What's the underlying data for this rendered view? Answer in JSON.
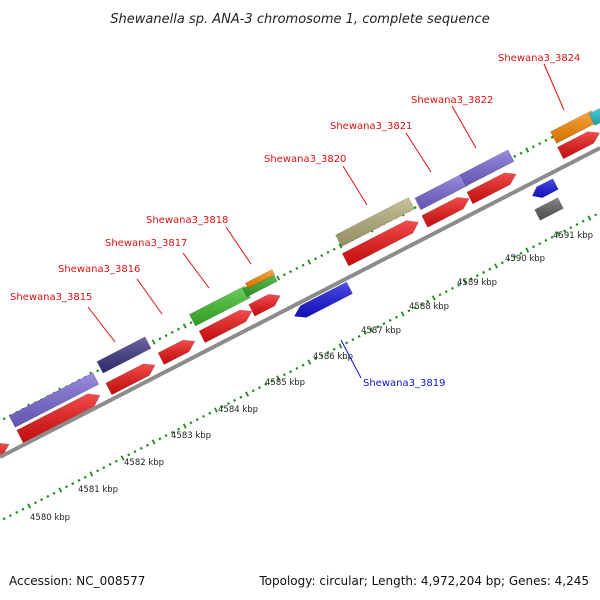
{
  "title": "Shewanella sp. ANA-3 chromosome 1, complete sequence",
  "footer": {
    "accession": "Accession: NC_008577",
    "topology": "Topology: circular; Length: 4,972,204 bp; Genes: 4,245"
  },
  "colors": {
    "label_forward": "#e01010",
    "label_reverse": "#1010d0",
    "backbone": "#8c8c8c",
    "ticks": "#1e8c1e"
  },
  "scale": {
    "labels": [
      "4580 kbp",
      "4581 kbp",
      "4582 kbp",
      "4583 kbp",
      "4584 kbp",
      "4585 kbp",
      "4586 kbp",
      "4587 kbp",
      "4588 kbp",
      "4589 kbp",
      "4590 kbp",
      "4591 kbp"
    ]
  },
  "gene_labels": [
    {
      "text": "Shewana3_3815",
      "strand": "forward"
    },
    {
      "text": "Shewana3_3816",
      "strand": "forward"
    },
    {
      "text": "Shewana3_3817",
      "strand": "forward"
    },
    {
      "text": "Shewana3_3818",
      "strand": "forward"
    },
    {
      "text": "Shewana3_3820",
      "strand": "forward"
    },
    {
      "text": "Shewana3_3821",
      "strand": "forward"
    },
    {
      "text": "Shewana3_3822",
      "strand": "forward"
    },
    {
      "text": "Shewana3_3824",
      "strand": "forward"
    },
    {
      "text": "Shewana3_3819",
      "strand": "reverse"
    }
  ]
}
